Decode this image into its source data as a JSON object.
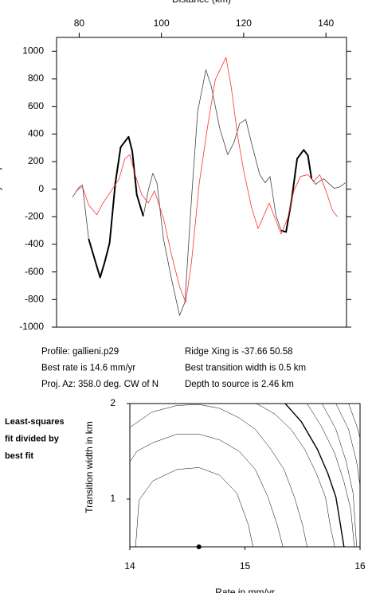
{
  "chart_data": [
    {
      "type": "line",
      "x_label": "Distance (km)",
      "y_label": "Anomaly amplitude",
      "xlim": [
        74.5,
        145
      ],
      "xticks": [
        80,
        100,
        120,
        140
      ],
      "ylim": [
        -1000,
        1100
      ],
      "yticks": [
        -1000,
        -800,
        -600,
        -400,
        -200,
        0,
        200,
        400,
        600,
        800,
        1000
      ],
      "series": [
        {
          "color": "#444444",
          "width": 0.8,
          "x": [
            78.4,
            80,
            80.8,
            82.3,
            84,
            85.1,
            86.2,
            87.4,
            88.8,
            90.1,
            92,
            92.9,
            94,
            95.6,
            96.8,
            97.9,
            98.9,
            100.5,
            102.4,
            104.4,
            105.7,
            107.3,
            108.8,
            110.8,
            112.1,
            114.1,
            116.1,
            117.6,
            119,
            120.5,
            121.9,
            123.9,
            125.2,
            126.4,
            127.8,
            129.1,
            130.3,
            131.7,
            133,
            134.6,
            135.6,
            136.5,
            137.5,
            138.5,
            139.5,
            140.5,
            142,
            143.4,
            144.7
          ],
          "values": [
            -58,
            15,
            30,
            -360,
            -530,
            -640,
            -530,
            -390,
            45,
            305,
            380,
            277,
            -40,
            -196,
            -10,
            115,
            46,
            -360,
            -645,
            -915,
            -820,
            -70,
            560,
            865,
            750,
            450,
            250,
            335,
            475,
            505,
            335,
            105,
            46,
            92,
            -185,
            -300,
            -310,
            -70,
            220,
            285,
            245,
            75,
            35,
            58,
            75,
            46,
            6,
            17,
            46
          ]
        },
        {
          "color": "#000000",
          "width": 2,
          "x": [
            82.3,
            84,
            85.1,
            86.2,
            87.4,
            88.8,
            90.1,
            92,
            92.9,
            94,
            95.6
          ],
          "values": [
            -360,
            -530,
            -640,
            -530,
            -390,
            45,
            305,
            380,
            277,
            -40,
            -196
          ]
        },
        {
          "color": "#000000",
          "width": 2,
          "x": [
            129.1,
            130.3,
            131.7,
            133,
            134.6,
            135.6,
            136.5
          ],
          "values": [
            -300,
            -310,
            -70,
            220,
            285,
            245,
            75
          ]
        },
        {
          "color": "#ff3030",
          "width": 0.8,
          "x": [
            79.2,
            80.8,
            82.3,
            84.3,
            85.8,
            87.8,
            89.7,
            91.1,
            92.3,
            93.6,
            95.2,
            96.8,
            98.3,
            100.5,
            102.4,
            104.4,
            105.9,
            107.3,
            109.2,
            111.2,
            113.1,
            115.7,
            117,
            118.5,
            120,
            121.9,
            123.5,
            125,
            126.2,
            127.6,
            129.1,
            130.7,
            132.2,
            133.8,
            135.6,
            137.1,
            138.5,
            140,
            141.6,
            142.8
          ],
          "values": [
            -12,
            17,
            -115,
            -185,
            -100,
            -12,
            75,
            220,
            250,
            105,
            -40,
            -100,
            -12,
            -210,
            -470,
            -705,
            -820,
            -530,
            46,
            450,
            795,
            955,
            735,
            390,
            135,
            -130,
            -285,
            -185,
            -100,
            -210,
            -325,
            -210,
            -12,
            92,
            105,
            58,
            105,
            -12,
            -155,
            -200
          ]
        }
      ],
      "info": [
        "Profile: gallieni.p29",
        "Ridge Xing is -37.66 50.58",
        "Best rate is 14.6 mm/yr",
        "Best transition width is 0.5 km",
        "Proj. Az: 358.0 deg. CW of N",
        "Depth to source is   2.46 km"
      ]
    },
    {
      "type": "contour",
      "side_text": [
        "Least-squares",
        "fit divided by",
        "best fit"
      ],
      "x_label": "Rate in mm/yr",
      "y_label": "Transition width in km",
      "xlim": [
        14,
        16
      ],
      "xticks": [
        14,
        15,
        16
      ],
      "ylim": [
        0.5,
        2
      ],
      "yticks": [
        1,
        2
      ],
      "best_fit": {
        "x": 14.6,
        "y": 0.5
      },
      "contours": [
        {
          "x": [
            14.05,
            14.08,
            14.2,
            14.41,
            14.6,
            14.78,
            14.93,
            15.03,
            15.07
          ],
          "y": [
            0.5,
            0.99,
            1.19,
            1.31,
            1.33,
            1.25,
            1.06,
            0.73,
            0.5
          ]
        },
        {
          "x": [
            14,
            14.06,
            14.2,
            14.41,
            14.6,
            14.78,
            14.95,
            15.09,
            15.2,
            15.28,
            15.33
          ],
          "y": [
            1.39,
            1.5,
            1.59,
            1.68,
            1.68,
            1.62,
            1.5,
            1.31,
            1.02,
            0.73,
            0.5
          ]
        },
        {
          "x": [
            14,
            14.19,
            14.41,
            14.6,
            14.78,
            14.95,
            15.09,
            15.22,
            15.34,
            15.43,
            15.5,
            15.54
          ],
          "y": [
            1.75,
            1.91,
            1.98,
            1.99,
            1.95,
            1.85,
            1.73,
            1.53,
            1.31,
            1.02,
            0.73,
            0.5
          ]
        },
        {
          "x": [
            15.1,
            15.26,
            15.4,
            15.52,
            15.62,
            15.7,
            15.74,
            15.78
          ],
          "y": [
            2,
            1.89,
            1.73,
            1.52,
            1.27,
            1.02,
            0.73,
            0.5
          ]
        },
        {
          "x": [
            15.35,
            15.49,
            15.63,
            15.72,
            15.79,
            15.83,
            15.86
          ],
          "y": [
            2,
            1.81,
            1.52,
            1.27,
            1.02,
            0.73,
            0.5
          ],
          "bold": true
        },
        {
          "x": [
            15.54,
            15.66,
            15.78,
            15.86,
            15.92,
            15.95
          ],
          "y": [
            2,
            1.77,
            1.48,
            1.18,
            0.89,
            0.5
          ]
        },
        {
          "x": [
            15.67,
            15.79,
            15.88,
            15.94,
            15.97
          ],
          "y": [
            2,
            1.73,
            1.39,
            1.06,
            0.5
          ]
        },
        {
          "x": [
            15.79,
            15.9,
            15.97,
            16
          ],
          "y": [
            2,
            1.73,
            1.39,
            1.14
          ]
        },
        {
          "x": [
            15.9,
            15.97,
            16
          ],
          "y": [
            2,
            1.77,
            1.64
          ]
        }
      ]
    }
  ]
}
